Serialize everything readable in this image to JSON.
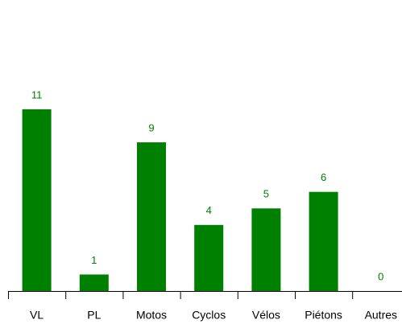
{
  "chart_data": {
    "type": "bar",
    "categories": [
      "VL",
      "PL",
      "Motos",
      "Cyclos",
      "Vélos",
      "Piétons",
      "Autres"
    ],
    "values": [
      11,
      1,
      9,
      4,
      5,
      6,
      0
    ],
    "color": "#008000"
  }
}
